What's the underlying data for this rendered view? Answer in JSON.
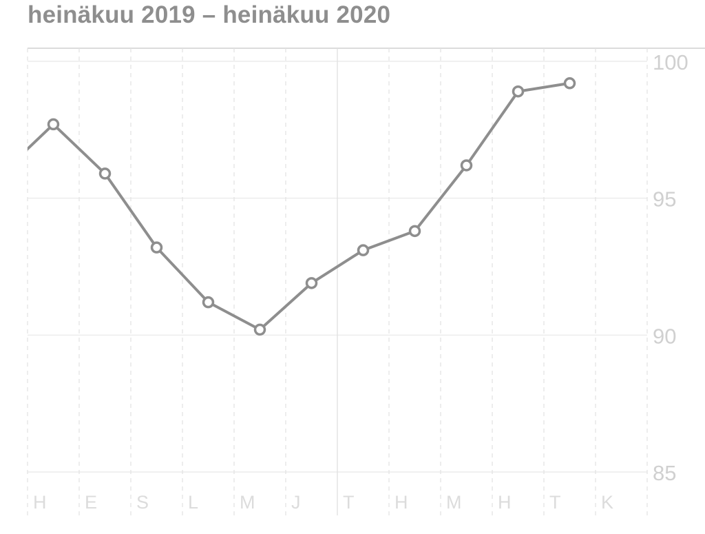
{
  "chart_data": {
    "type": "line",
    "title": "heinäkuu 2019 – heinäkuu 2020",
    "categories": [
      "H",
      "E",
      "S",
      "L",
      "M",
      "J",
      "T",
      "H",
      "M",
      "H",
      "T",
      "K"
    ],
    "previous_value": 95.9,
    "series": [
      {
        "values": [
          97.7,
          95.9,
          93.2,
          91.2,
          90.2,
          91.9,
          93.1,
          93.8,
          96.2,
          98.9,
          99.2,
          null
        ]
      }
    ],
    "ylim": [
      85,
      100
    ],
    "yticks": [
      "100",
      "95",
      "90",
      "85"
    ],
    "ytick_values": [
      100,
      95,
      90,
      85
    ],
    "y_axis_position": "right",
    "grid": true,
    "colors": {
      "line": "#8e8e8e",
      "grid": "#ececec",
      "labels": "#d0d0d0",
      "title": "#8e8e8e"
    }
  }
}
